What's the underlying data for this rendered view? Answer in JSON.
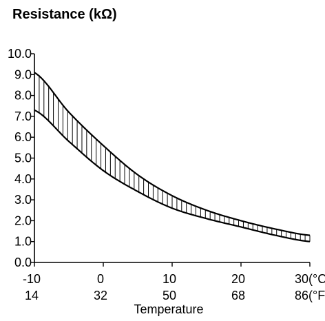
{
  "chart_data": {
    "type": "area",
    "title": "Resistance (kΩ)",
    "xlabel": "Temperature",
    "ylabel": "",
    "xlim": [
      -10,
      30
    ],
    "ylim": [
      0.0,
      10.0
    ],
    "grid": false,
    "y_ticks": [
      "0.0",
      "1.0",
      "2.0",
      "3.0",
      "4.0",
      "5.0",
      "6.0",
      "7.0",
      "8.0",
      "9.0",
      "10.0"
    ],
    "y_tick_values": [
      0,
      1,
      2,
      3,
      4,
      5,
      6,
      7,
      8,
      9,
      10
    ],
    "x_ticks_c": [
      "-10",
      "0",
      "10",
      "20",
      "30(°C)"
    ],
    "x_ticks_f": [
      "14",
      "32",
      "50",
      "68",
      "86(°F)"
    ],
    "x_tick_values": [
      -10,
      0,
      10,
      20,
      30
    ],
    "series": [
      {
        "x": [
          -10,
          -5,
          0,
          5,
          10,
          15,
          20,
          25,
          30
        ],
        "values": [
          9.1,
          7.2,
          5.6,
          4.2,
          3.2,
          2.5,
          2.0,
          1.6,
          1.3
        ]
      },
      {
        "x": [
          -10,
          -5,
          0,
          5,
          10,
          15,
          20,
          25,
          30
        ],
        "values": [
          7.3,
          5.8,
          4.4,
          3.4,
          2.6,
          2.1,
          1.7,
          1.3,
          1.0
        ]
      }
    ]
  }
}
